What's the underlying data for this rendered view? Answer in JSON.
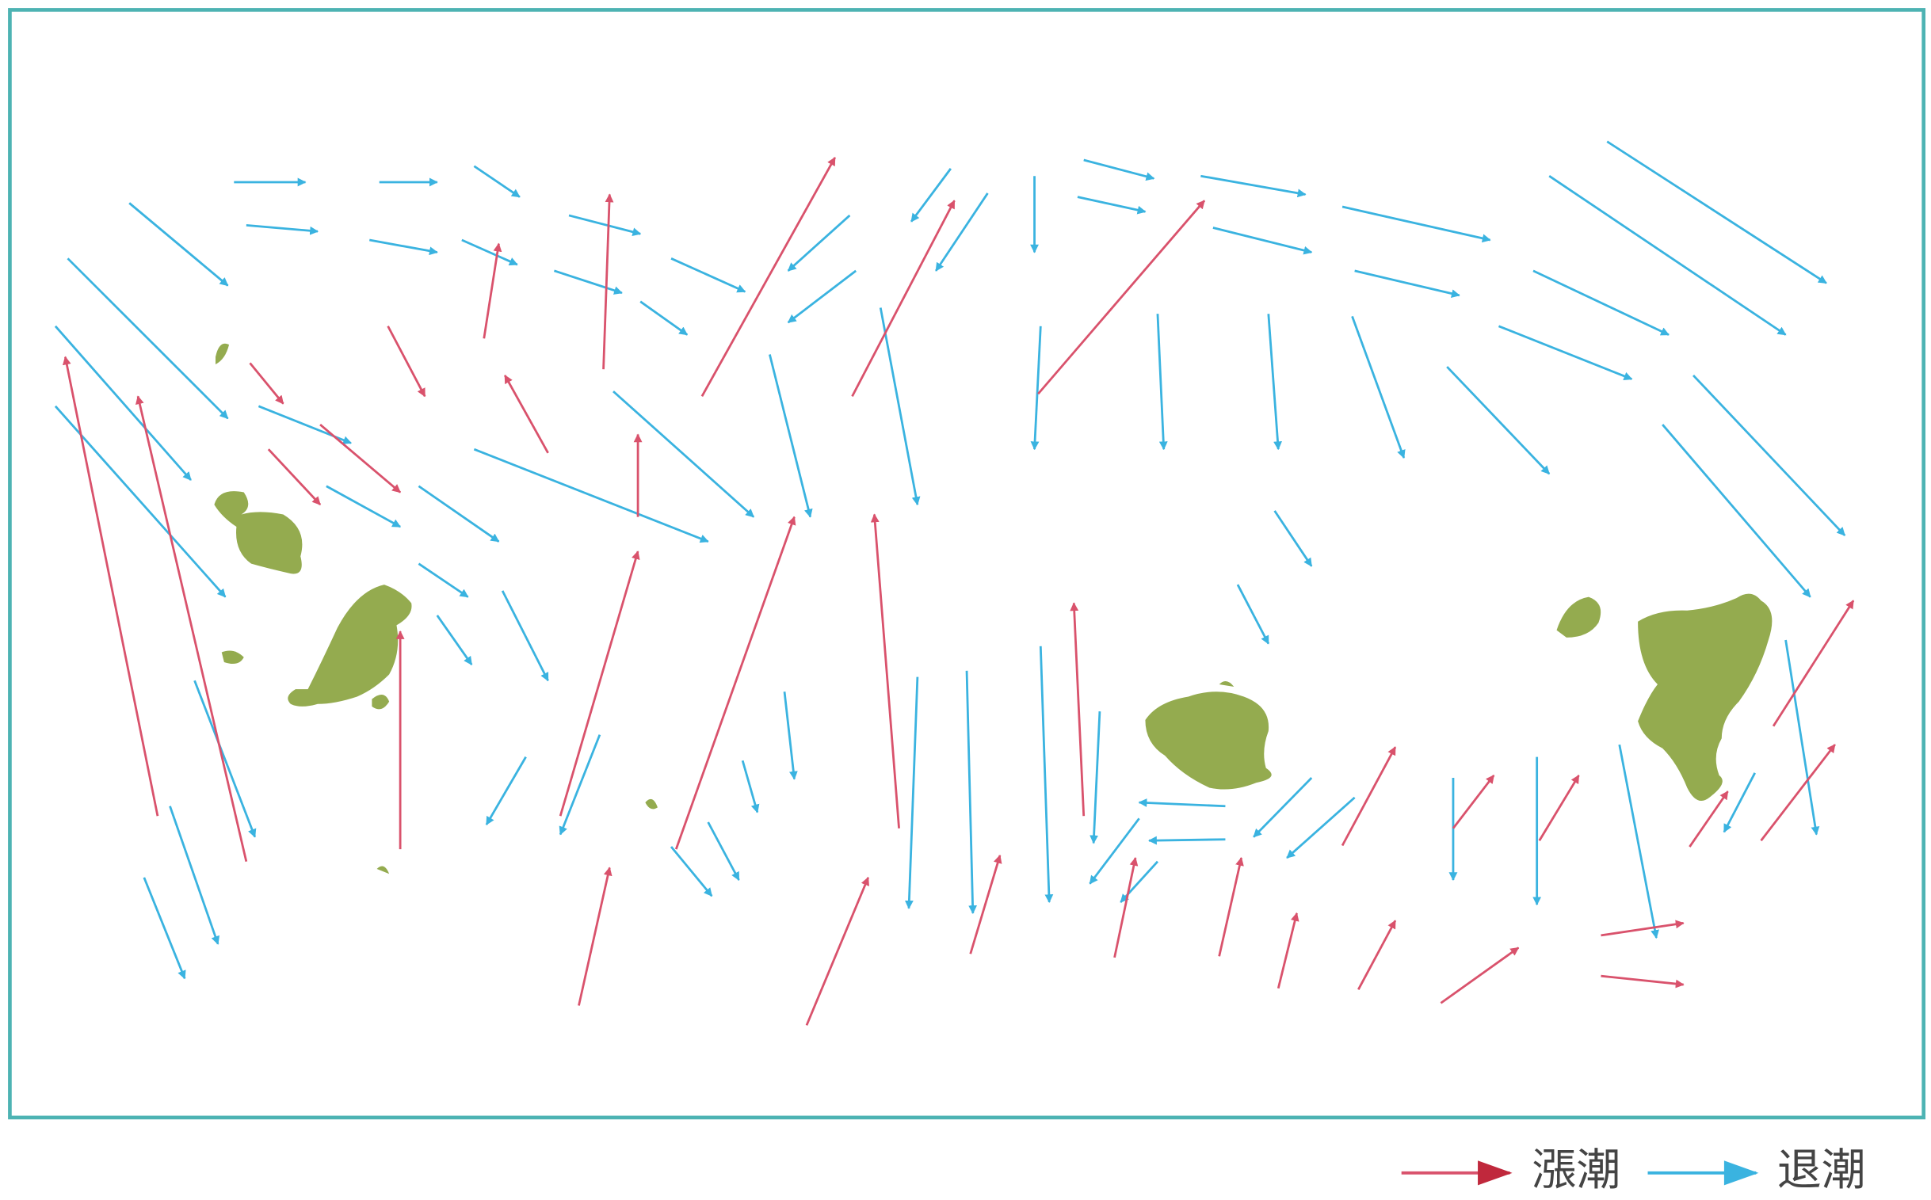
{
  "legend": [
    {
      "label": "漲潮"
    },
    {
      "label": "退潮"
    }
  ]
}
